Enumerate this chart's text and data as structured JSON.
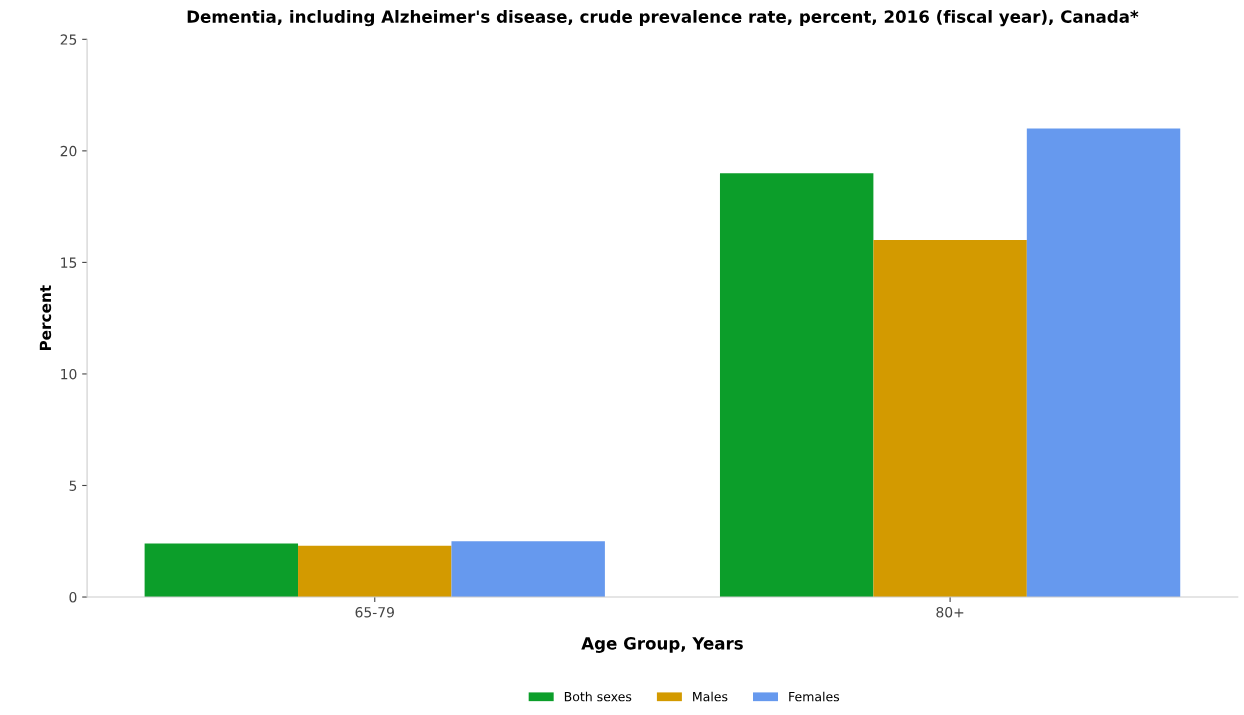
{
  "chart_data": {
    "type": "bar",
    "title": "Dementia, including Alzheimer's disease, crude prevalence rate, percent, 2016 (fiscal year), Canada*",
    "xlabel": "Age Group, Years",
    "ylabel": "Percent",
    "categories": [
      "65-79",
      "80+"
    ],
    "series": [
      {
        "name": "Both sexes",
        "color": "#0c9e2a",
        "values": [
          2.4,
          19.0
        ]
      },
      {
        "name": "Males",
        "color": "#d39a00",
        "values": [
          2.3,
          16.0
        ]
      },
      {
        "name": "Females",
        "color": "#6699ee",
        "values": [
          2.5,
          21.0
        ]
      }
    ],
    "ylim": [
      0,
      25
    ],
    "yticks": [
      0,
      5,
      10,
      15,
      20,
      25
    ],
    "grid": false,
    "legend": "bottom"
  }
}
